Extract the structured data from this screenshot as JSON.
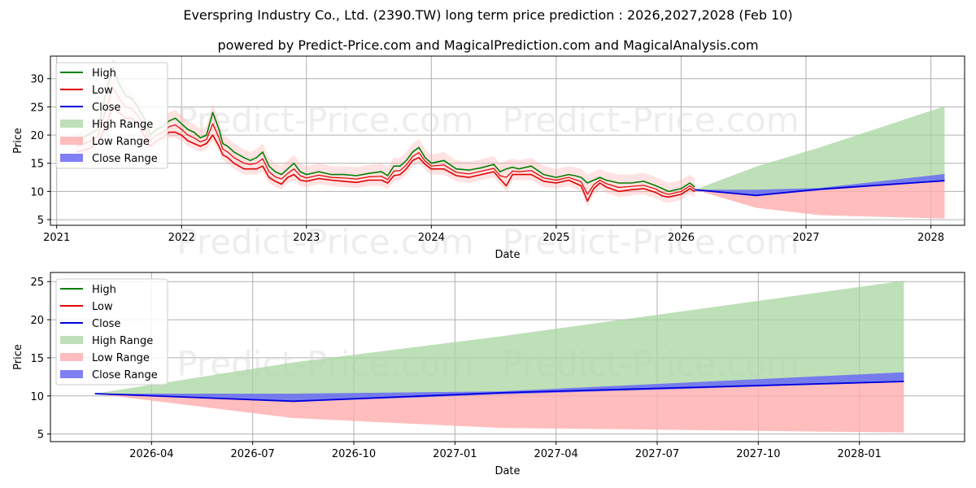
{
  "title": "Everspring Industry Co., Ltd. (2390.TW) long term price prediction : 2026,2027,2028 (Feb 10)",
  "subtitle": "powered by Predict-Price.com and MagicalPrediction.com and MagicalAnalysis.com",
  "watermark": "Predict-Price.com",
  "colors": {
    "high": "#008000",
    "low": "#e00000",
    "close": "#0000dd",
    "high_range": "#a8d5a0",
    "low_range": "#ffadad",
    "close_range": "#6a6af5"
  },
  "chart_data": [
    {
      "type": "line",
      "xlabel": "Date",
      "ylabel": "Price",
      "xlim": [
        2020.95,
        2028.27
      ],
      "ylim": [
        4.0,
        34.0
      ],
      "x_ticks": [
        2021,
        2022,
        2023,
        2024,
        2025,
        2026,
        2027,
        2028
      ],
      "x_tick_labels": [
        "2021",
        "2022",
        "2023",
        "2024",
        "2025",
        "2026",
        "2027",
        "2028"
      ],
      "y_ticks": [
        5,
        10,
        15,
        20,
        25,
        30
      ],
      "y_tick_labels": [
        "5",
        "10",
        "15",
        "20",
        "25",
        "30"
      ],
      "legend": [
        "High",
        "Low",
        "Close",
        "High Range",
        "Low Range",
        "Close Range"
      ],
      "legend_position": "upper-left",
      "historical": {
        "x": [
          2021.16,
          2021.25,
          2021.33,
          2021.4,
          2021.45,
          2021.5,
          2021.55,
          2021.6,
          2021.65,
          2021.7,
          2021.75,
          2021.8,
          2021.85,
          2021.9,
          2021.95,
          2022.0,
          2022.05,
          2022.1,
          2022.15,
          2022.2,
          2022.25,
          2022.3,
          2022.33,
          2022.37,
          2022.42,
          2022.5,
          2022.55,
          2022.6,
          2022.65,
          2022.7,
          2022.75,
          2022.8,
          2022.85,
          2022.9,
          2022.95,
          2023.0,
          2023.1,
          2023.2,
          2023.3,
          2023.4,
          2023.5,
          2023.6,
          2023.65,
          2023.7,
          2023.75,
          2023.8,
          2023.85,
          2023.9,
          2023.95,
          2024.0,
          2024.1,
          2024.2,
          2024.3,
          2024.4,
          2024.5,
          2024.55,
          2024.6,
          2024.65,
          2024.7,
          2024.8,
          2024.9,
          2025.0,
          2025.1,
          2025.15,
          2025.2,
          2025.25,
          2025.3,
          2025.35,
          2025.4,
          2025.5,
          2025.6,
          2025.7,
          2025.8,
          2025.85,
          2025.9,
          2026.0,
          2026.07,
          2026.11
        ],
        "high": [
          19.0,
          20.0,
          21.0,
          28.0,
          32.0,
          29.0,
          27.0,
          26.5,
          25.0,
          23.0,
          20.0,
          21.0,
          21.5,
          22.5,
          23.0,
          22.0,
          21.0,
          20.5,
          19.5,
          20.0,
          24.0,
          21.0,
          18.5,
          18.0,
          17.0,
          16.0,
          15.5,
          16.0,
          17.0,
          14.5,
          13.5,
          13.0,
          14.0,
          15.0,
          13.5,
          13.0,
          13.5,
          13.0,
          13.0,
          12.8,
          13.2,
          13.5,
          12.8,
          14.5,
          14.5,
          15.5,
          17.0,
          17.8,
          16.0,
          15.0,
          15.5,
          14.0,
          13.8,
          14.2,
          14.8,
          13.5,
          14.0,
          14.3,
          14.0,
          14.5,
          13.0,
          12.5,
          13.0,
          12.8,
          12.5,
          11.5,
          12.0,
          12.5,
          12.0,
          11.5,
          11.5,
          11.8,
          11.0,
          10.5,
          10.0,
          10.5,
          11.5,
          10.8
        ],
        "low": [
          17.0,
          17.5,
          18.5,
          22.0,
          25.0,
          24.0,
          23.0,
          23.0,
          22.0,
          20.0,
          18.0,
          19.0,
          19.5,
          20.5,
          20.5,
          20.0,
          19.0,
          18.5,
          18.0,
          18.5,
          20.0,
          18.0,
          16.5,
          16.0,
          15.0,
          14.0,
          14.0,
          14.0,
          14.5,
          12.5,
          11.8,
          11.3,
          12.5,
          13.0,
          12.0,
          11.8,
          12.3,
          12.0,
          11.8,
          11.6,
          12.0,
          12.0,
          11.5,
          12.8,
          13.0,
          14.0,
          15.5,
          16.0,
          14.8,
          14.0,
          14.0,
          12.8,
          12.5,
          13.0,
          13.5,
          12.2,
          11.0,
          13.0,
          13.0,
          13.0,
          11.8,
          11.5,
          12.0,
          11.5,
          11.0,
          8.3,
          10.5,
          11.5,
          10.8,
          10.0,
          10.3,
          10.5,
          9.8,
          9.2,
          9.0,
          9.5,
          10.5,
          10.0
        ],
        "close": [
          18.0,
          18.7,
          19.7,
          25.0,
          28.5,
          26.5,
          25.0,
          24.7,
          23.5,
          21.5,
          19.0,
          20.0,
          20.5,
          21.5,
          21.8,
          21.0,
          20.0,
          19.5,
          18.8,
          19.2,
          22.0,
          19.5,
          17.5,
          17.0,
          16.0,
          15.0,
          14.8,
          15.0,
          15.8,
          13.5,
          12.6,
          12.2,
          13.2,
          14.0,
          12.8,
          12.4,
          12.9,
          12.5,
          12.4,
          12.2,
          12.6,
          12.7,
          12.1,
          13.6,
          13.7,
          14.7,
          16.2,
          16.9,
          15.4,
          14.5,
          14.7,
          13.4,
          13.1,
          13.6,
          14.1,
          12.8,
          12.5,
          13.6,
          13.5,
          13.7,
          12.4,
          12.0,
          12.5,
          12.1,
          11.7,
          9.5,
          11.2,
          12.0,
          11.4,
          10.7,
          10.9,
          11.1,
          10.4,
          9.8,
          9.5,
          10.0,
          11.0,
          10.4
        ]
      },
      "prediction": {
        "x": [
          2026.11,
          2026.6,
          2027.11,
          2028.11
        ],
        "close": [
          10.3,
          9.3,
          10.4,
          11.9
        ],
        "high_range_upper": [
          10.3,
          14.4,
          17.8,
          25.1
        ],
        "low_range_lower": [
          10.3,
          7.1,
          5.8,
          5.2
        ],
        "close_range_upper": [
          10.3,
          10.3,
          10.6,
          13.1
        ],
        "close_range_lower": [
          10.3,
          9.2,
          10.2,
          11.8
        ]
      }
    },
    {
      "type": "line",
      "xlabel": "Date",
      "ylabel": "Price",
      "xlim": [
        2026.0,
        2028.26
      ],
      "ylim": [
        4.0,
        26.2
      ],
      "x_ticks": [
        2026.25,
        2026.5,
        2026.75,
        2027.0,
        2027.25,
        2027.5,
        2027.75,
        2028.0
      ],
      "x_tick_labels": [
        "2026-04",
        "2026-07",
        "2026-10",
        "2027-01",
        "2027-04",
        "2027-07",
        "2027-10",
        "2028-01"
      ],
      "y_ticks": [
        5,
        10,
        15,
        20,
        25
      ],
      "y_tick_labels": [
        "5",
        "10",
        "15",
        "20",
        "25"
      ],
      "legend": [
        "High",
        "Low",
        "Close",
        "High Range",
        "Low Range",
        "Close Range"
      ],
      "legend_position": "upper-left",
      "prediction": {
        "x": [
          2026.11,
          2026.6,
          2027.11,
          2028.11
        ],
        "close": [
          10.3,
          9.3,
          10.4,
          11.9
        ],
        "high_range_upper": [
          10.3,
          14.4,
          17.8,
          25.1
        ],
        "low_range_lower": [
          10.3,
          7.1,
          5.8,
          5.2
        ],
        "close_range_upper": [
          10.3,
          10.3,
          10.6,
          13.1
        ],
        "close_range_lower": [
          10.3,
          9.2,
          10.2,
          11.8
        ]
      }
    }
  ]
}
